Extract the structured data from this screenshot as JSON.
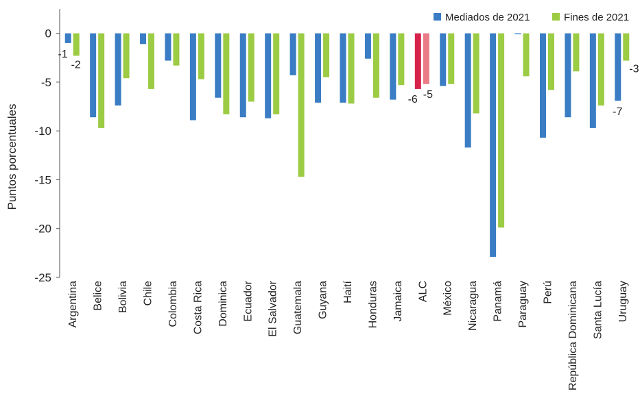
{
  "chart_data": {
    "type": "bar",
    "title": "",
    "xlabel": "",
    "ylabel": "Puntos porcentuales",
    "ylim": [
      -25,
      2.5
    ],
    "yticks": [
      0,
      -5,
      -10,
      -15,
      -20,
      -25
    ],
    "grid": false,
    "legend_position": "top-right",
    "categories": [
      "Argentina",
      "Belice",
      "Bolivia",
      "Chile",
      "Colombia",
      "Costa Rica",
      "Dominica",
      "Ecuador",
      "El Salvador",
      "Guatemala",
      "Guyana",
      "Haití",
      "Honduras",
      "Jamaica",
      "ALC",
      "México",
      "Nicaragua",
      "Panamá",
      "Paraguay",
      "Perú",
      "República Dominicana",
      "Santa Lucía",
      "Uruguay"
    ],
    "series": [
      {
        "name": "Mediados de 2021",
        "color": "#3a7dc4",
        "highlight_color": "#d6224a",
        "values": [
          -1.0,
          -8.6,
          -7.4,
          -1.1,
          -2.8,
          -8.9,
          -6.6,
          -8.6,
          -8.7,
          -4.3,
          -7.1,
          -7.1,
          -2.6,
          -6.8,
          -5.7,
          -5.4,
          -11.7,
          -22.9,
          -0.1,
          -10.7,
          -8.6,
          -9.7,
          -6.9
        ]
      },
      {
        "name": "Fines de 2021",
        "color": "#9ccb44",
        "highlight_color": "#ea7b87",
        "values": [
          -2.3,
          -9.7,
          -4.6,
          -5.7,
          -3.3,
          -4.7,
          -8.3,
          -7.0,
          -8.3,
          -14.7,
          -4.5,
          -7.2,
          -6.6,
          -5.3,
          -5.2,
          -5.2,
          -8.2,
          -19.9,
          -4.4,
          -5.8,
          -3.9,
          -7.4,
          -2.8
        ]
      }
    ],
    "highlight_category": "ALC",
    "data_labels": [
      {
        "category": "Argentina",
        "series": 0,
        "text": "-1"
      },
      {
        "category": "Argentina",
        "series": 1,
        "text": "-2"
      },
      {
        "category": "ALC",
        "series": 0,
        "text": "-6"
      },
      {
        "category": "ALC",
        "series": 1,
        "text": "-5"
      },
      {
        "category": "Uruguay",
        "series": 0,
        "text": "-7"
      },
      {
        "category": "Uruguay",
        "series": 1,
        "text": "-3"
      }
    ]
  }
}
